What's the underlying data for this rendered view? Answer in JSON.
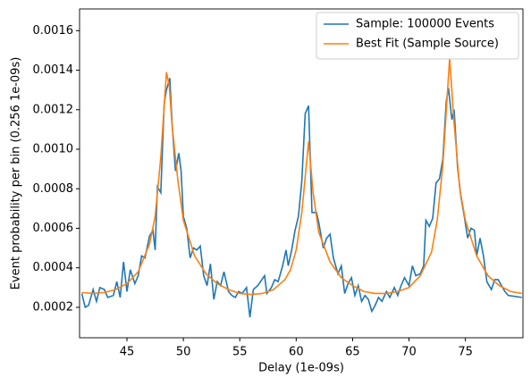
{
  "chart_data": {
    "type": "line",
    "xlabel": "Delay (1e-09s)",
    "ylabel": "Event probability per bin (0.256 1e-09s)",
    "xlim": [
      40.8,
      80.1
    ],
    "ylim": [
      4.6e-05,
      0.00171
    ],
    "xticks": [
      45,
      50,
      55,
      60,
      65,
      70,
      75
    ],
    "yticks": [
      0.0002,
      0.0004,
      0.0006,
      0.0008,
      {
        "value": 0.001,
        "label": "0.0010"
      },
      0.0012,
      0.0014,
      0.0016
    ],
    "legend": "upper right",
    "series": [
      {
        "name": "Sample: 100000 Events",
        "color": "#1f77b4",
        "x": [
          41.0,
          41.3,
          41.6,
          42.0,
          42.3,
          42.6,
          43.0,
          43.3,
          43.8,
          44.1,
          44.4,
          44.7,
          45.0,
          45.3,
          45.7,
          46.0,
          46.3,
          46.6,
          47.0,
          47.3,
          47.5,
          47.7,
          48.0,
          48.3,
          48.5,
          48.8,
          49.0,
          49.3,
          49.6,
          49.8,
          50.0,
          50.3,
          50.6,
          50.9,
          51.2,
          51.5,
          51.8,
          52.1,
          52.4,
          52.7,
          53.0,
          53.3,
          53.6,
          54.0,
          54.3,
          54.6,
          54.9,
          55.2,
          55.6,
          55.9,
          56.2,
          56.6,
          57.2,
          57.4,
          57.8,
          58.1,
          58.4,
          58.8,
          59.1,
          59.3,
          59.6,
          59.9,
          60.2,
          60.5,
          60.8,
          61.1,
          61.4,
          61.8,
          62.0,
          62.4,
          62.7,
          63.0,
          63.3,
          63.7,
          64.0,
          64.3,
          64.6,
          64.9,
          65.2,
          65.5,
          65.8,
          66.1,
          66.4,
          66.7,
          67.0,
          67.3,
          67.6,
          68.0,
          68.3,
          68.7,
          69.0,
          69.3,
          69.6,
          70.0,
          70.3,
          70.6,
          71.0,
          71.3,
          71.5,
          71.8,
          72.1,
          72.4,
          72.7,
          73.0,
          73.3,
          73.5,
          73.8,
          74.0,
          74.3,
          74.6,
          74.9,
          75.2,
          75.5,
          75.8,
          76.0,
          76.3,
          76.6,
          76.9,
          77.3,
          77.6,
          77.9,
          78.2,
          78.5,
          78.8,
          80.0
        ],
        "values": [
          0.00027,
          0.0002,
          0.00021,
          0.00029,
          0.00023,
          0.0003,
          0.00029,
          0.00025,
          0.00026,
          0.00033,
          0.00025,
          0.00043,
          0.00028,
          0.00039,
          0.00032,
          0.00036,
          0.00046,
          0.00045,
          0.00056,
          0.00059,
          0.00049,
          0.00081,
          0.00078,
          0.00123,
          0.0013,
          0.00136,
          0.00113,
          0.00089,
          0.00098,
          0.00089,
          0.00066,
          0.0006,
          0.00045,
          0.0005,
          0.00049,
          0.00051,
          0.00036,
          0.00031,
          0.00042,
          0.00024,
          0.00033,
          0.00031,
          0.00038,
          0.00028,
          0.00026,
          0.00025,
          0.00028,
          0.00027,
          0.0003,
          0.00015,
          0.00029,
          0.00031,
          0.00036,
          0.00027,
          0.0003,
          0.00034,
          0.00033,
          0.00041,
          0.00049,
          0.00041,
          0.00049,
          0.00059,
          0.00066,
          0.00084,
          0.00118,
          0.00122,
          0.00068,
          0.00068,
          0.00063,
          0.0005,
          0.00055,
          0.00057,
          0.00045,
          0.00037,
          0.00041,
          0.00027,
          0.00032,
          0.00035,
          0.00026,
          0.00031,
          0.00023,
          0.00026,
          0.00024,
          0.00018,
          0.00021,
          0.00025,
          0.00023,
          0.00028,
          0.00025,
          0.0003,
          0.00026,
          0.00031,
          0.00035,
          0.00031,
          0.00041,
          0.00036,
          0.00037,
          0.00041,
          0.00064,
          0.00061,
          0.00065,
          0.00083,
          0.00085,
          0.00095,
          0.00124,
          0.00131,
          0.00115,
          0.0012,
          0.00091,
          0.00076,
          0.00066,
          0.00055,
          0.0006,
          0.00059,
          0.00046,
          0.00055,
          0.00046,
          0.00033,
          0.00029,
          0.00034,
          0.00034,
          0.00031,
          0.00028,
          0.00026,
          0.00025
        ]
      },
      {
        "name": "Best Fit (Sample Source)",
        "color": "#ff7f0e",
        "x": [
          41,
          42,
          43,
          44,
          45,
          46,
          47,
          47.5,
          48,
          48.5,
          48.75,
          49,
          49.5,
          50,
          51,
          52,
          53,
          54,
          55,
          56,
          57,
          58,
          59,
          59.5,
          60,
          60.5,
          61.1,
          61.5,
          62,
          63,
          64,
          65,
          66,
          67,
          68,
          69,
          70,
          71,
          72,
          72.5,
          73,
          73.6,
          74,
          74.5,
          75,
          76,
          77,
          78,
          79,
          80
        ],
        "values": [
          0.000275,
          0.00027,
          0.000275,
          0.00029,
          0.00032,
          0.00038,
          0.00052,
          0.00066,
          0.00096,
          0.00139,
          0.00132,
          0.00112,
          0.00085,
          0.00064,
          0.00046,
          0.00037,
          0.00032,
          0.00029,
          0.00027,
          0.000265,
          0.00027,
          0.00029,
          0.00034,
          0.00039,
          0.00049,
          0.00068,
          0.00104,
          0.00078,
          0.00058,
          0.00043,
          0.00035,
          0.00031,
          0.00028,
          0.00027,
          0.00027,
          0.00028,
          0.0003,
          0.00036,
          0.00048,
          0.00064,
          0.00092,
          0.00146,
          0.00113,
          0.0008,
          0.00064,
          0.00046,
          0.00036,
          0.00031,
          0.00028,
          0.00027
        ]
      }
    ]
  }
}
